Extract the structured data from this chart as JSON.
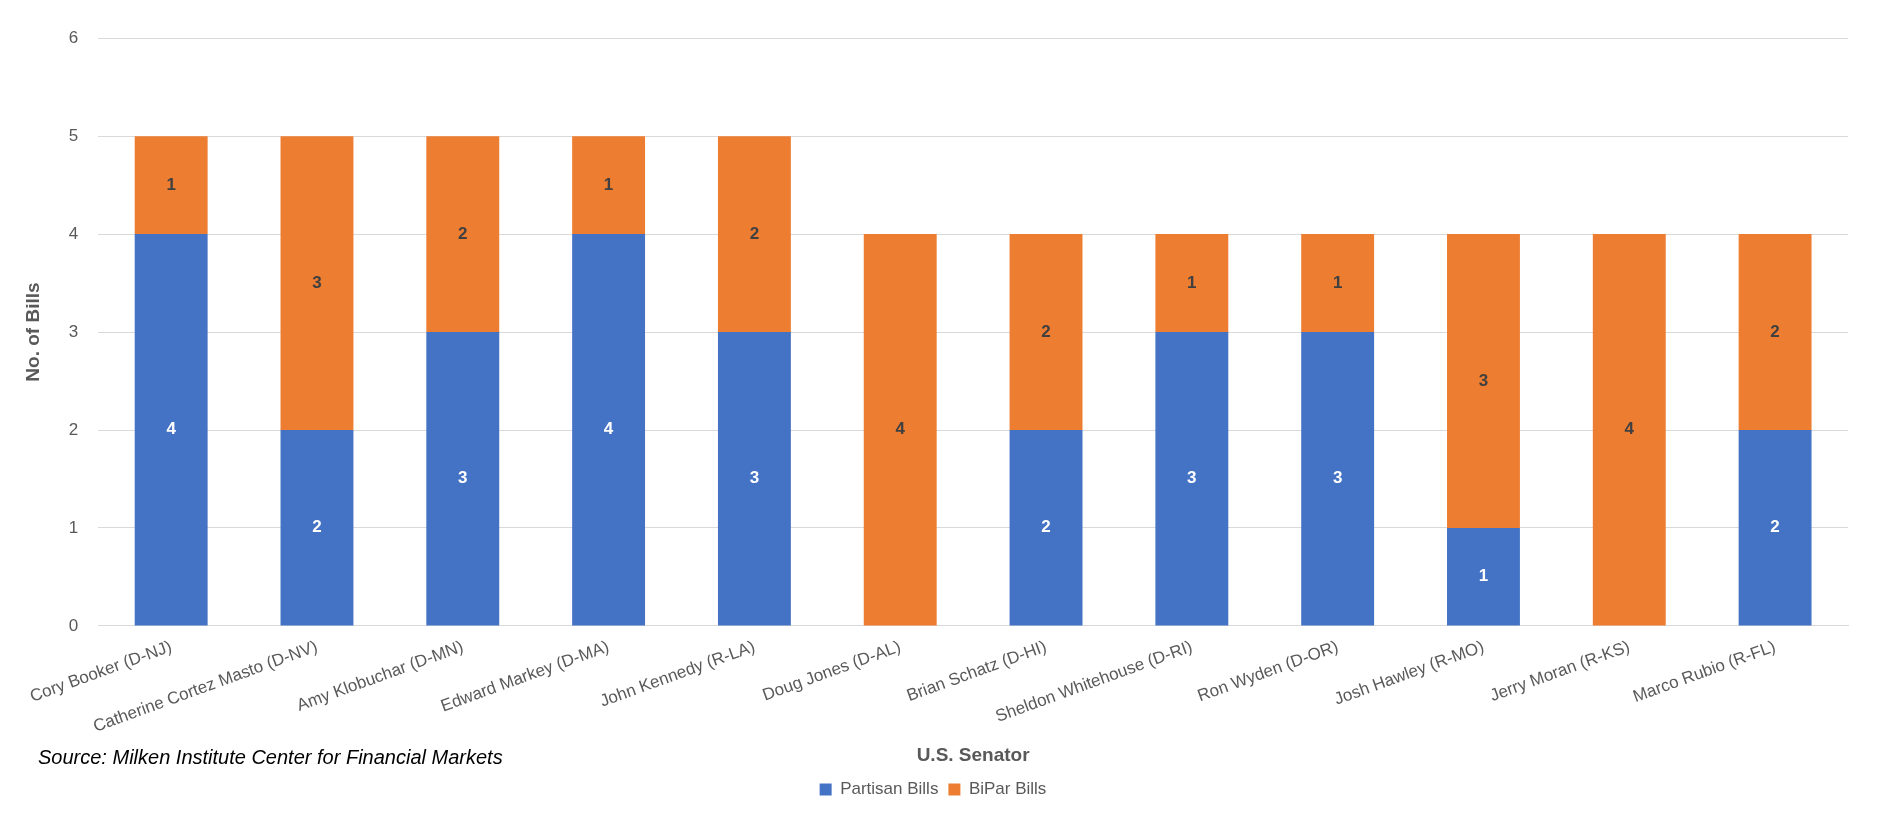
{
  "chart_data": {
    "type": "bar",
    "stacked": true,
    "xlabel": "U.S. Senator",
    "ylabel": "No. of Bills",
    "categories": [
      "Cory Booker (D-NJ)",
      "Catherine Cortez Masto (D-NV)",
      "Amy Klobuchar (D-MN)",
      "Edward Markey (D-MA)",
      "John Kennedy (R-LA)",
      "Doug Jones (D-AL)",
      "Brian Schatz (D-HI)",
      "Sheldon Whitehouse (D-RI)",
      "Ron Wyden (D-OR)",
      "Josh Hawley (R-MO)",
      "Jerry Moran (R-KS)",
      "Marco Rubio (R-FL)"
    ],
    "series": [
      {
        "name": "Partisan Bills",
        "color": "#4472c4",
        "values": [
          4,
          2,
          3,
          4,
          3,
          0,
          2,
          3,
          3,
          1,
          0,
          2
        ],
        "value_labels": [
          "4",
          "2",
          "3",
          "4",
          "3",
          null,
          "2",
          "3",
          "3",
          "1",
          null,
          "2"
        ]
      },
      {
        "name": "BiPar Bills",
        "color": "#ed7d31",
        "values": [
          1,
          3,
          2,
          1,
          2,
          4,
          2,
          1,
          1,
          3,
          4,
          2
        ],
        "value_labels": [
          "1",
          "3",
          "2",
          "1",
          "2",
          "4",
          "2",
          "1",
          "1",
          "3",
          "4",
          "2"
        ]
      }
    ],
    "ylim": [
      0,
      6
    ],
    "yticks": [
      0,
      1,
      2,
      3,
      4,
      5,
      6
    ],
    "grid": "y",
    "legend": "bottom",
    "annotations": [
      "Source: Milken Institute Center for Financial Markets"
    ]
  }
}
